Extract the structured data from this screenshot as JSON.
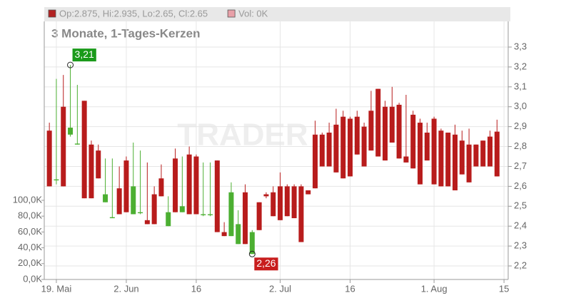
{
  "chart_data": {
    "type": "candlestick",
    "subtitle": "3 Monate, 1-Tages-Kerzen",
    "watermark": "TRADER",
    "legend": [
      {
        "text": "Op:2.875, Hi:2.935, Lo:2.65, Cl:2.65",
        "color": "#b22222"
      },
      {
        "text": "Vol: 0K",
        "color": "#e8a0a8"
      }
    ],
    "up_color": "#4caf32",
    "down_color": "#b81c1c",
    "x": [
      -1,
      0,
      1,
      2,
      3,
      4,
      5,
      6,
      7,
      8,
      9,
      10,
      11,
      12,
      13,
      14,
      15,
      16,
      17,
      18,
      19,
      20,
      21,
      22,
      23,
      24,
      25,
      26,
      27,
      28,
      29,
      30,
      31,
      32,
      33,
      34,
      35,
      36,
      37,
      38,
      39,
      40,
      41,
      42,
      43,
      44,
      45,
      46,
      47,
      48,
      49,
      50,
      51,
      52,
      53,
      54,
      55,
      56,
      57,
      58,
      59,
      60,
      61,
      62,
      63
    ],
    "open": [
      2.88,
      2.63,
      3.0,
      2.86,
      2.81,
      3.03,
      2.81,
      2.78,
      2.52,
      2.44,
      2.59,
      2.73,
      2.46,
      2.465,
      2.43,
      2.56,
      2.64,
      2.4,
      2.74,
      2.47,
      2.76,
      2.75,
      2.455,
      2.455,
      2.73,
      2.37,
      2.35,
      2.31,
      2.57,
      2.26,
      2.52,
      2.56,
      2.57,
      2.6,
      2.6,
      2.6,
      2.6,
      2.58,
      2.86,
      2.86,
      2.87,
      2.91,
      2.95,
      2.94,
      2.95,
      2.9,
      2.98,
      3.09,
      3.0,
      3.0,
      3.01,
      2.75,
      2.96,
      2.92,
      2.87,
      2.94,
      2.88,
      2.87,
      2.86,
      2.83,
      2.81,
      2.81,
      2.83,
      2.85,
      2.875
    ],
    "high": [
      2.92,
      3.14,
      3.16,
      3.21,
      3.11,
      3.03,
      2.83,
      2.81,
      2.74,
      2.74,
      2.7,
      2.75,
      2.82,
      2.78,
      2.72,
      2.6,
      2.71,
      2.55,
      2.79,
      2.75,
      2.8,
      2.76,
      2.72,
      2.72,
      2.73,
      2.42,
      2.62,
      2.48,
      2.61,
      2.38,
      2.52,
      2.57,
      2.6,
      2.67,
      2.61,
      2.61,
      2.61,
      2.58,
      2.93,
      2.87,
      2.92,
      2.99,
      2.98,
      2.95,
      2.98,
      2.92,
      3.08,
      3.09,
      3.03,
      3.1,
      3.02,
      3.06,
      2.98,
      2.94,
      2.92,
      2.95,
      2.89,
      2.87,
      2.91,
      2.88,
      2.89,
      2.81,
      2.83,
      2.88,
      2.935
    ],
    "low": [
      2.6,
      2.61,
      2.6,
      2.85,
      2.81,
      2.54,
      2.54,
      2.64,
      2.52,
      2.44,
      2.46,
      2.47,
      2.46,
      2.46,
      2.41,
      2.41,
      2.55,
      2.4,
      2.47,
      2.47,
      2.46,
      2.46,
      2.45,
      2.45,
      2.37,
      2.35,
      2.35,
      2.31,
      2.31,
      2.26,
      2.38,
      2.54,
      2.45,
      2.43,
      2.45,
      2.44,
      2.32,
      2.56,
      2.59,
      2.7,
      2.7,
      2.67,
      2.64,
      2.65,
      2.76,
      2.7,
      2.78,
      2.75,
      2.73,
      2.82,
      2.74,
      2.72,
      2.69,
      2.61,
      2.73,
      2.61,
      2.6,
      2.6,
      2.58,
      2.66,
      2.62,
      2.7,
      2.7,
      2.7,
      2.65
    ],
    "close": [
      2.6,
      2.635,
      2.6,
      2.895,
      2.815,
      2.54,
      2.54,
      2.64,
      2.56,
      2.445,
      2.46,
      2.47,
      2.6,
      2.47,
      2.41,
      2.41,
      2.55,
      2.47,
      2.47,
      2.5,
      2.46,
      2.46,
      2.46,
      2.46,
      2.37,
      2.35,
      2.57,
      2.41,
      2.31,
      2.37,
      2.38,
      2.55,
      2.45,
      2.43,
      2.45,
      2.44,
      2.32,
      2.56,
      2.59,
      2.7,
      2.7,
      2.67,
      2.64,
      2.65,
      2.76,
      2.7,
      2.78,
      2.75,
      2.73,
      2.82,
      2.74,
      2.72,
      2.69,
      2.61,
      2.73,
      2.61,
      2.6,
      2.6,
      2.58,
      2.66,
      2.62,
      2.7,
      2.7,
      2.7,
      2.65
    ],
    "xlim": [
      -1.73,
      64.6
    ],
    "xticks": [
      {
        "value": 0,
        "label": "19. Mai"
      },
      {
        "value": 10,
        "label": "2. Jun"
      },
      {
        "value": 20,
        "label": "16"
      },
      {
        "value": 32,
        "label": "2. Jul"
      },
      {
        "value": 42,
        "label": "16"
      },
      {
        "value": 54,
        "label": "1. Aug"
      },
      {
        "value": 64,
        "label": "15"
      }
    ],
    "ylim": [
      2.132,
      3.429
    ],
    "yticks": [
      {
        "value": 2.2,
        "label": "2,2"
      },
      {
        "value": 2.3,
        "label": "2,3"
      },
      {
        "value": 2.4,
        "label": "2,4"
      },
      {
        "value": 2.5,
        "label": "2,5"
      },
      {
        "value": 2.6,
        "label": "2,6"
      },
      {
        "value": 2.7,
        "label": "2,7"
      },
      {
        "value": 2.8,
        "label": "2,8"
      },
      {
        "value": 2.9,
        "label": "2,9"
      },
      {
        "value": 3.0,
        "label": "3,0"
      },
      {
        "value": 3.1,
        "label": "3,1"
      },
      {
        "value": 3.2,
        "label": "3,2"
      },
      {
        "value": 3.3,
        "label": "3,3"
      }
    ],
    "y2lim": [
      0,
      326000
    ],
    "y2ticks": [
      {
        "value": 0,
        "label": "0,0K"
      },
      {
        "value": 20000,
        "label": "20,0K"
      },
      {
        "value": 40000,
        "label": "40,0K"
      },
      {
        "value": 60000,
        "label": "60,0K"
      },
      {
        "value": 80000,
        "label": "80,0K"
      },
      {
        "value": 100000,
        "label": "100,0K"
      }
    ],
    "grid": true,
    "annotations": [
      {
        "text": "3,21",
        "x": 2,
        "y": 3.21,
        "color": "#1a9a1a",
        "position": "above"
      },
      {
        "text": "2,26",
        "x": 28,
        "y": 2.26,
        "color": "#c81e1e",
        "position": "below"
      }
    ]
  }
}
